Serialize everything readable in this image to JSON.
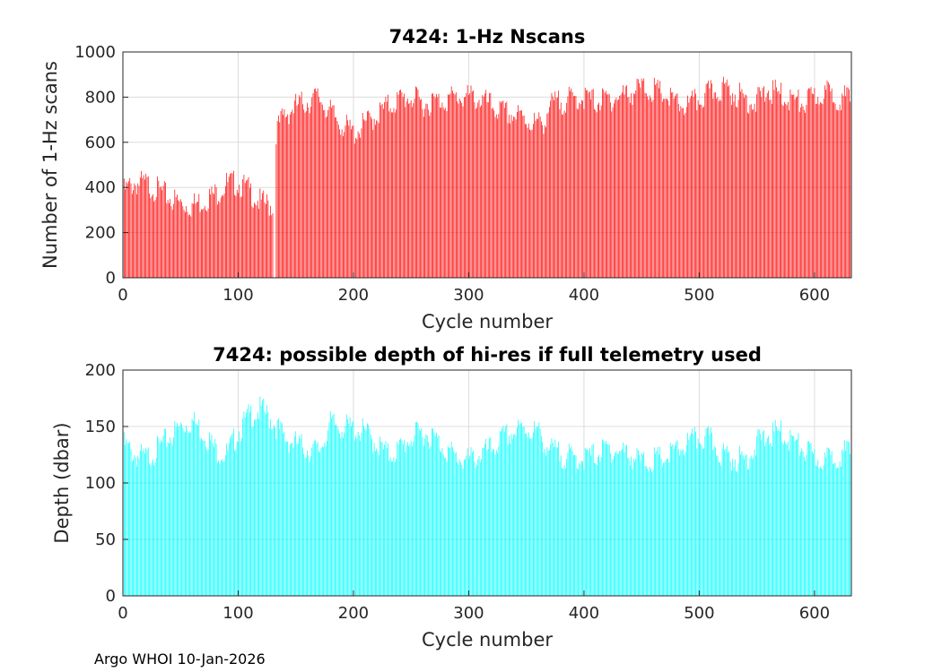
{
  "footer": "Argo WHOI 10-Jan-2026",
  "chart_data": [
    {
      "type": "bar",
      "title": "7424: 1-Hz Nscans",
      "xlabel": "Cycle number",
      "ylabel": "Number of 1-Hz scans",
      "xlim": [
        0,
        632
      ],
      "ylim": [
        0,
        1000
      ],
      "xticks": [
        0,
        100,
        200,
        300,
        400,
        500,
        600
      ],
      "yticks": [
        0,
        200,
        400,
        600,
        800,
        1000
      ],
      "grid": true,
      "color": "#ff0000",
      "segments": [
        {
          "x": [
            0,
            10,
            20,
            30,
            40,
            50,
            60,
            70,
            80,
            90,
            100,
            110,
            120,
            130
          ],
          "y": [
            380,
            420,
            415,
            390,
            355,
            330,
            320,
            345,
            370,
            415,
            420,
            385,
            330,
            320
          ]
        },
        {
          "x": [
            133,
            140,
            150,
            160,
            170,
            180,
            190,
            200,
            210,
            220,
            230,
            240,
            250,
            260,
            270,
            280,
            290,
            300,
            310,
            320,
            330,
            340,
            350,
            360,
            365,
            370,
            380,
            390,
            400,
            410,
            420,
            430,
            440,
            450,
            460,
            470,
            480,
            490,
            500,
            510,
            520,
            530,
            540,
            550,
            560,
            570,
            580,
            590,
            600,
            610,
            620,
            632
          ],
          "y": [
            650,
            720,
            760,
            780,
            800,
            730,
            680,
            640,
            680,
            720,
            760,
            790,
            800,
            770,
            780,
            790,
            800,
            800,
            790,
            760,
            730,
            720,
            700,
            680,
            690,
            760,
            780,
            790,
            800,
            780,
            790,
            800,
            820,
            840,
            830,
            810,
            770,
            760,
            790,
            820,
            840,
            820,
            790,
            780,
            830,
            810,
            790,
            770,
            800,
            820,
            800,
            790
          ]
        }
      ]
    },
    {
      "type": "bar",
      "title": "7424: possible depth of hi-res if full telemetry used",
      "xlabel": "Cycle number",
      "ylabel": "Depth (dbar)",
      "xlim": [
        0,
        632
      ],
      "ylim": [
        0,
        200
      ],
      "xticks": [
        0,
        100,
        200,
        300,
        400,
        500,
        600
      ],
      "yticks": [
        0,
        50,
        100,
        150,
        200
      ],
      "grid": true,
      "color": "#00ffff",
      "segments": [
        {
          "x": [
            0,
            10,
            20,
            30,
            40,
            50,
            60,
            70,
            80,
            90,
            100,
            110,
            120,
            130,
            140,
            150,
            160,
            170,
            180,
            190,
            200,
            210,
            220,
            230,
            240,
            250,
            260,
            270,
            280,
            290,
            300,
            310,
            320,
            330,
            340,
            350,
            360,
            370,
            380,
            390,
            400,
            410,
            420,
            430,
            440,
            450,
            460,
            470,
            480,
            490,
            500,
            510,
            520,
            530,
            540,
            550,
            560,
            570,
            580,
            590,
            600,
            610,
            620,
            632
          ],
          "y": [
            135,
            125,
            122,
            130,
            140,
            150,
            155,
            145,
            130,
            125,
            145,
            160,
            165,
            155,
            140,
            135,
            130,
            128,
            152,
            150,
            148,
            145,
            135,
            125,
            130,
            140,
            145,
            140,
            130,
            122,
            120,
            125,
            130,
            140,
            145,
            148,
            145,
            130,
            125,
            122,
            122,
            125,
            130,
            128,
            125,
            118,
            120,
            122,
            128,
            135,
            140,
            138,
            125,
            122,
            120,
            135,
            142,
            145,
            138,
            130,
            122,
            120,
            125,
            128
          ]
        }
      ]
    }
  ]
}
